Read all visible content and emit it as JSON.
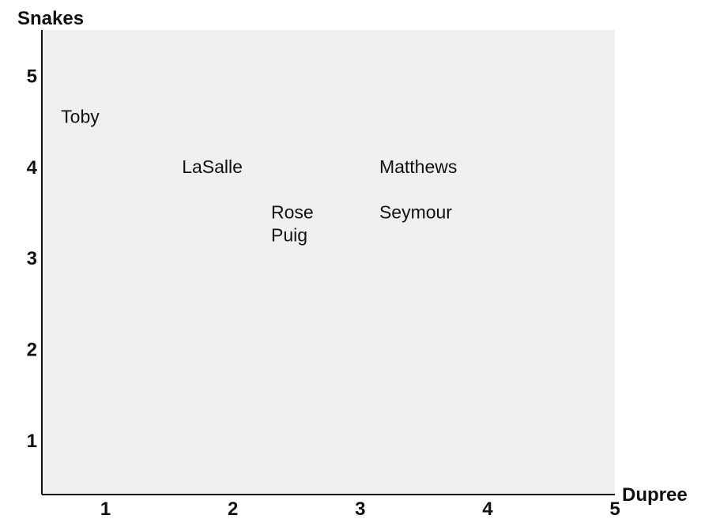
{
  "chart_data": {
    "type": "scatter",
    "title": "",
    "xlabel": "Dupree",
    "ylabel": "Snakes",
    "xlim": [
      0.5,
      5
    ],
    "ylim": [
      0.4,
      5.5
    ],
    "xticks": [
      "1",
      "2",
      "3",
      "4",
      "5"
    ],
    "yticks": [
      "1",
      "2",
      "3",
      "4",
      "5"
    ],
    "grid": false,
    "marker": "text-label",
    "points": [
      {
        "label": "Toby",
        "x": 0.65,
        "y": 4.55
      },
      {
        "label": "LaSalle",
        "x": 1.6,
        "y": 4.0
      },
      {
        "label": "Matthews",
        "x": 3.15,
        "y": 4.0
      },
      {
        "label": "Rose",
        "x": 2.3,
        "y": 3.5
      },
      {
        "label": "Seymour",
        "x": 3.15,
        "y": 3.5
      },
      {
        "label": "Puig",
        "x": 2.3,
        "y": 3.25
      }
    ]
  },
  "colors": {
    "plot_background": "#efefef",
    "text": "#111111",
    "axis": "#111111"
  }
}
